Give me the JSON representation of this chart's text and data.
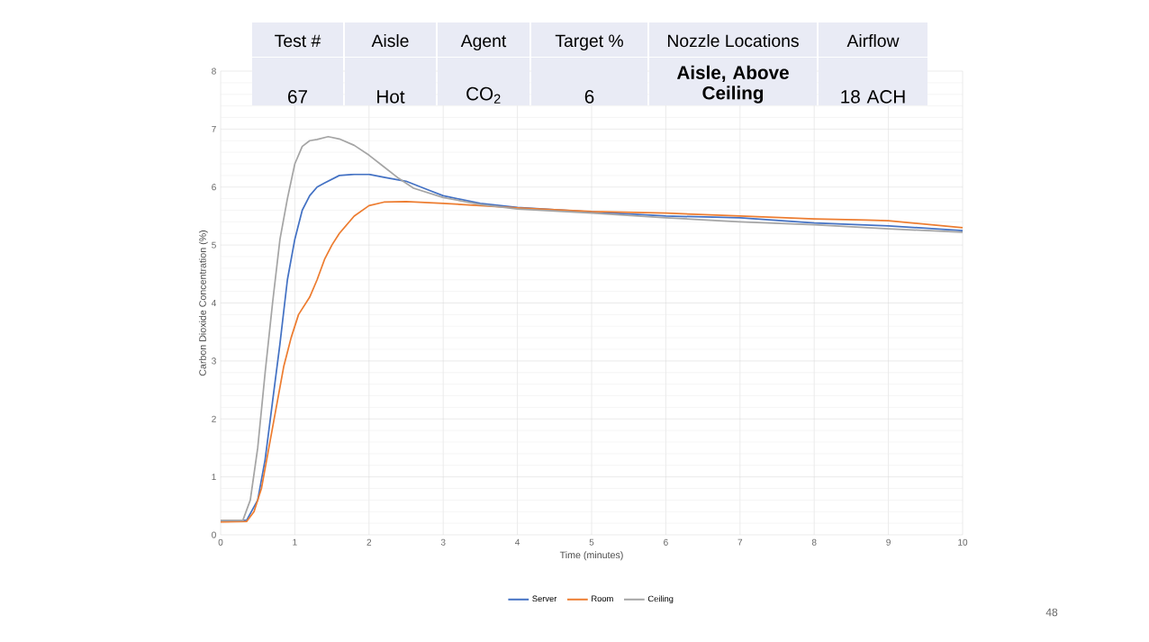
{
  "chart_data": {
    "type": "line",
    "xlabel": "Time (minutes)",
    "ylabel": "Carbon Dioxide Concentration (%)",
    "xlim": [
      0,
      10
    ],
    "ylim": [
      0,
      8
    ],
    "xticks": [
      0,
      1,
      2,
      3,
      4,
      5,
      6,
      7,
      8,
      9,
      10
    ],
    "yticks": [
      0,
      1,
      2,
      3,
      4,
      5,
      6,
      7,
      8
    ],
    "grid": true,
    "legend": "bottom",
    "series": [
      {
        "name": "Server",
        "color": "#4472c4",
        "x": [
          0,
          0.35,
          0.5,
          0.6,
          0.7,
          0.8,
          0.9,
          1.0,
          1.1,
          1.2,
          1.3,
          1.4,
          1.6,
          1.8,
          2.0,
          2.2,
          2.5,
          2.8,
          3.0,
          3.5,
          4,
          5,
          6,
          7,
          8,
          9,
          10
        ],
        "values": [
          0.25,
          0.25,
          0.6,
          1.3,
          2.3,
          3.3,
          4.4,
          5.1,
          5.6,
          5.85,
          6.0,
          6.07,
          6.2,
          6.22,
          6.22,
          6.17,
          6.1,
          5.95,
          5.85,
          5.72,
          5.65,
          5.57,
          5.5,
          5.47,
          5.38,
          5.33,
          5.25
        ]
      },
      {
        "name": "Room",
        "color": "#ed7d31",
        "x": [
          0,
          0.35,
          0.45,
          0.55,
          0.65,
          0.75,
          0.85,
          0.95,
          1.05,
          1.2,
          1.3,
          1.4,
          1.5,
          1.6,
          1.8,
          2.0,
          2.2,
          2.5,
          3.0,
          3.5,
          4,
          5,
          6,
          7,
          8,
          8.7,
          9,
          10
        ],
        "values": [
          0.22,
          0.23,
          0.4,
          0.8,
          1.5,
          2.2,
          2.9,
          3.4,
          3.8,
          4.1,
          4.4,
          4.75,
          5.0,
          5.2,
          5.5,
          5.68,
          5.74,
          5.75,
          5.72,
          5.68,
          5.64,
          5.58,
          5.55,
          5.5,
          5.45,
          5.43,
          5.42,
          5.3
        ]
      },
      {
        "name": "Ceiling",
        "color": "#a5a5a5",
        "x": [
          0,
          0.3,
          0.4,
          0.5,
          0.6,
          0.7,
          0.8,
          0.9,
          1.0,
          1.1,
          1.2,
          1.3,
          1.45,
          1.6,
          1.8,
          2.0,
          2.2,
          2.4,
          2.6,
          2.8,
          3.0,
          3.5,
          4,
          5,
          6,
          7,
          8,
          9,
          10
        ],
        "values": [
          0.25,
          0.25,
          0.6,
          1.5,
          2.8,
          4.0,
          5.1,
          5.8,
          6.4,
          6.7,
          6.8,
          6.82,
          6.87,
          6.83,
          6.72,
          6.55,
          6.35,
          6.15,
          5.98,
          5.9,
          5.82,
          5.7,
          5.62,
          5.55,
          5.47,
          5.4,
          5.35,
          5.28,
          5.22
        ]
      }
    ],
    "annotations": [
      "Test #",
      "Aisle",
      "Agent",
      "Target %",
      "Nozzle Locations",
      "Airflow",
      "67",
      "Hot",
      "CO$_{2}$",
      "6",
      "**Aisle, Above Ceiling**",
      "18 ACH",
      "48"
    ]
  }
}
